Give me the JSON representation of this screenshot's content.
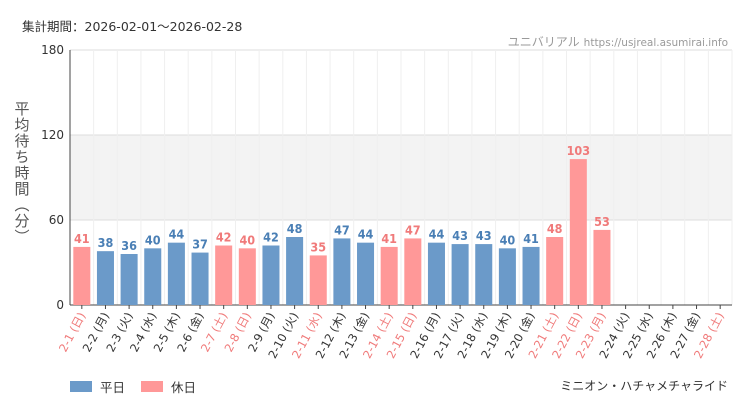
{
  "header": {
    "period": "集計期間：2026-02-01～2026-02-28",
    "site_name": "ユニバリアル",
    "site_url": "https://usjreal.asumirai.info"
  },
  "footer": {
    "attraction": "ミニオン・ハチャメチャライド"
  },
  "colors": {
    "weekday": "#6b9ac9",
    "holiday": "#ff9898",
    "weekday_label": "#4a7fb5",
    "holiday_label": "#f07a7a",
    "band": "#f3f3f3"
  },
  "chart_data": {
    "type": "bar",
    "title": "",
    "ylabel": "平均待ち時間（分）",
    "xlabel": "",
    "ylim": [
      0,
      180
    ],
    "yticks": [
      0,
      60,
      120,
      180
    ],
    "categories": [
      "2-1 (日)",
      "2-2 (月)",
      "2-3 (火)",
      "2-4 (水)",
      "2-5 (木)",
      "2-6 (金)",
      "2-7 (土)",
      "2-8 (日)",
      "2-9 (月)",
      "2-10 (火)",
      "2-11 (水)",
      "2-12 (木)",
      "2-13 (金)",
      "2-14 (土)",
      "2-15 (日)",
      "2-16 (月)",
      "2-17 (火)",
      "2-18 (水)",
      "2-19 (木)",
      "2-20 (金)",
      "2-21 (土)",
      "2-22 (日)",
      "2-23 (月)",
      "2-24 (火)",
      "2-25 (水)",
      "2-26 (木)",
      "2-27 (金)",
      "2-28 (土)"
    ],
    "values": [
      41,
      38,
      36,
      40,
      44,
      37,
      42,
      40,
      42,
      48,
      35,
      47,
      44,
      41,
      47,
      44,
      43,
      43,
      40,
      41,
      48,
      103,
      53,
      null,
      null,
      null,
      null,
      null
    ],
    "day_type": [
      "holiday",
      "weekday",
      "weekday",
      "weekday",
      "weekday",
      "weekday",
      "holiday",
      "holiday",
      "weekday",
      "weekday",
      "holiday",
      "weekday",
      "weekday",
      "holiday",
      "holiday",
      "weekday",
      "weekday",
      "weekday",
      "weekday",
      "weekday",
      "holiday",
      "holiday",
      "holiday",
      "weekday",
      "weekday",
      "weekday",
      "weekday",
      "holiday"
    ],
    "legend": [
      "平日",
      "休日"
    ]
  }
}
